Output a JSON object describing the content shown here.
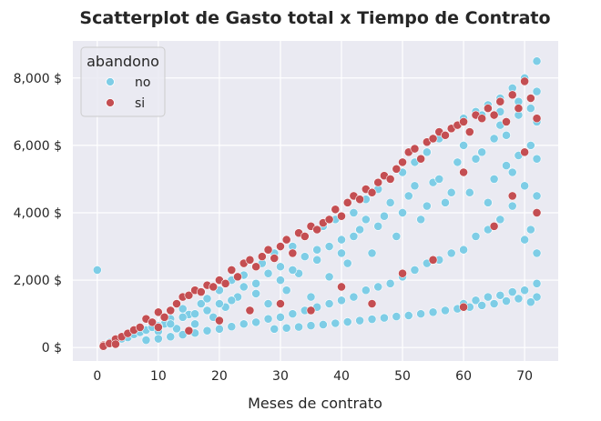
{
  "chart_data": {
    "type": "scatter",
    "title": "Scatterplot de Gasto total x Tiempo de Contrato",
    "xlabel": "Meses de contrato",
    "ylabel": "",
    "xlim": [
      -4,
      75.5
    ],
    "ylim": [
      -400,
      9100
    ],
    "x_ticks": [
      0,
      10,
      20,
      30,
      40,
      50,
      60,
      70
    ],
    "x_tick_labels": [
      "0",
      "10",
      "20",
      "30",
      "40",
      "50",
      "60",
      "70"
    ],
    "y_ticks": [
      0,
      2000,
      4000,
      6000,
      8000
    ],
    "y_tick_labels": [
      "0 $",
      "2,000 $",
      "4,000 $",
      "6,000 $",
      "8,000 $"
    ],
    "grid": true,
    "legend": {
      "title": "abandono",
      "placement": "top-left",
      "entries": [
        {
          "label": "no",
          "color": "#7ecde6"
        },
        {
          "label": "si",
          "color": "#c44e52"
        }
      ]
    },
    "series": [
      {
        "name": "no",
        "color": "#7ecde6",
        "points": [
          [
            0,
            2300
          ],
          [
            1,
            80
          ],
          [
            2,
            150
          ],
          [
            3,
            200
          ],
          [
            4,
            260
          ],
          [
            5,
            300
          ],
          [
            6,
            390
          ],
          [
            7,
            450
          ],
          [
            8,
            520
          ],
          [
            9,
            600
          ],
          [
            10,
            480
          ],
          [
            11,
            700
          ],
          [
            12,
            850
          ],
          [
            13,
            560
          ],
          [
            14,
            1150
          ],
          [
            15,
            980
          ],
          [
            16,
            700
          ],
          [
            17,
            1300
          ],
          [
            18,
            1450
          ],
          [
            19,
            900
          ],
          [
            20,
            1700
          ],
          [
            21,
            1200
          ],
          [
            22,
            2000
          ],
          [
            23,
            1500
          ],
          [
            24,
            2150
          ],
          [
            25,
            1100
          ],
          [
            26,
            1900
          ],
          [
            27,
            2500
          ],
          [
            28,
            1300
          ],
          [
            29,
            2800
          ],
          [
            30,
            2400
          ],
          [
            31,
            1700
          ],
          [
            32,
            3000
          ],
          [
            33,
            2200
          ],
          [
            34,
            3300
          ],
          [
            35,
            1500
          ],
          [
            36,
            2900
          ],
          [
            37,
            3600
          ],
          [
            38,
            2100
          ],
          [
            39,
            3800
          ],
          [
            40,
            3200
          ],
          [
            41,
            2500
          ],
          [
            42,
            4000
          ],
          [
            43,
            3500
          ],
          [
            44,
            4400
          ],
          [
            45,
            2800
          ],
          [
            46,
            4700
          ],
          [
            47,
            3900
          ],
          [
            48,
            5000
          ],
          [
            49,
            3300
          ],
          [
            50,
            5200
          ],
          [
            51,
            4500
          ],
          [
            52,
            5500
          ],
          [
            53,
            3800
          ],
          [
            54,
            5800
          ],
          [
            55,
            4900
          ],
          [
            56,
            6200
          ],
          [
            57,
            4300
          ],
          [
            58,
            6500
          ],
          [
            59,
            5500
          ],
          [
            60,
            6800
          ],
          [
            61,
            4600
          ],
          [
            62,
            7000
          ],
          [
            63,
            5800
          ],
          [
            64,
            7200
          ],
          [
            65,
            5000
          ],
          [
            66,
            7400
          ],
          [
            67,
            6300
          ],
          [
            68,
            7700
          ],
          [
            69,
            5700
          ],
          [
            70,
            8000
          ],
          [
            71,
            7100
          ],
          [
            72,
            8500
          ],
          [
            72,
            6700
          ],
          [
            72,
            5600
          ],
          [
            72,
            4500
          ],
          [
            71,
            3500
          ],
          [
            72,
            2800
          ],
          [
            70,
            3200
          ],
          [
            68,
            4200
          ],
          [
            66,
            3800
          ],
          [
            64,
            3500
          ],
          [
            62,
            3300
          ],
          [
            60,
            2900
          ],
          [
            58,
            2800
          ],
          [
            56,
            2600
          ],
          [
            54,
            2500
          ],
          [
            52,
            2300
          ],
          [
            50,
            2100
          ],
          [
            48,
            1900
          ],
          [
            46,
            1800
          ],
          [
            44,
            1700
          ],
          [
            42,
            1500
          ],
          [
            40,
            1400
          ],
          [
            38,
            1300
          ],
          [
            36,
            1200
          ],
          [
            34,
            1100
          ],
          [
            32,
            1000
          ],
          [
            30,
            900
          ],
          [
            28,
            850
          ],
          [
            26,
            750
          ],
          [
            24,
            700
          ],
          [
            22,
            620
          ],
          [
            20,
            550
          ],
          [
            18,
            500
          ],
          [
            16,
            430
          ],
          [
            14,
            380
          ],
          [
            12,
            320
          ],
          [
            10,
            260
          ],
          [
            8,
            220
          ],
          [
            60,
            1300
          ],
          [
            62,
            1400
          ],
          [
            64,
            1500
          ],
          [
            66,
            1550
          ],
          [
            68,
            1650
          ],
          [
            70,
            1700
          ],
          [
            72,
            1900
          ],
          [
            72,
            1500
          ],
          [
            71,
            1350
          ],
          [
            69,
            1450
          ],
          [
            67,
            1380
          ],
          [
            65,
            1300
          ],
          [
            63,
            1250
          ],
          [
            61,
            1200
          ],
          [
            59,
            1150
          ],
          [
            57,
            1100
          ],
          [
            55,
            1050
          ],
          [
            53,
            1000
          ],
          [
            51,
            950
          ],
          [
            49,
            920
          ],
          [
            47,
            880
          ],
          [
            45,
            840
          ],
          [
            43,
            800
          ],
          [
            41,
            760
          ],
          [
            39,
            720
          ],
          [
            37,
            680
          ],
          [
            35,
            650
          ],
          [
            33,
            610
          ],
          [
            31,
            580
          ],
          [
            29,
            550
          ],
          [
            65,
            6200
          ],
          [
            67,
            5400
          ],
          [
            69,
            6900
          ],
          [
            71,
            6000
          ],
          [
            70,
            4800
          ],
          [
            68,
            5200
          ],
          [
            66,
            6600
          ],
          [
            64,
            4300
          ],
          [
            62,
            5600
          ],
          [
            60,
            5200
          ],
          [
            58,
            4600
          ],
          [
            56,
            5000
          ],
          [
            54,
            4200
          ],
          [
            52,
            4800
          ],
          [
            50,
            4000
          ],
          [
            48,
            4300
          ],
          [
            46,
            3600
          ],
          [
            44,
            3800
          ],
          [
            42,
            3300
          ],
          [
            40,
            2800
          ],
          [
            38,
            3000
          ],
          [
            36,
            2600
          ],
          [
            34,
            2700
          ],
          [
            32,
            2300
          ],
          [
            30,
            2000
          ],
          [
            28,
            2200
          ],
          [
            26,
            1600
          ],
          [
            24,
            1800
          ],
          [
            22,
            1400
          ],
          [
            20,
            1300
          ],
          [
            18,
            1100
          ],
          [
            16,
            1000
          ],
          [
            14,
            900
          ],
          [
            12,
            700
          ],
          [
            10,
            640
          ],
          [
            60,
            6000
          ],
          [
            63,
            6900
          ],
          [
            66,
            7000
          ],
          [
            69,
            7300
          ],
          [
            72,
            7600
          ]
        ]
      },
      {
        "name": "si",
        "color": "#c44e52",
        "points": [
          [
            1,
            70
          ],
          [
            1,
            40
          ],
          [
            2,
            120
          ],
          [
            3,
            250
          ],
          [
            4,
            320
          ],
          [
            5,
            420
          ],
          [
            6,
            520
          ],
          [
            7,
            600
          ],
          [
            8,
            850
          ],
          [
            9,
            750
          ],
          [
            10,
            1050
          ],
          [
            11,
            900
          ],
          [
            12,
            1100
          ],
          [
            13,
            1300
          ],
          [
            14,
            1500
          ],
          [
            15,
            1550
          ],
          [
            16,
            1700
          ],
          [
            17,
            1650
          ],
          [
            18,
            1850
          ],
          [
            19,
            1800
          ],
          [
            20,
            2000
          ],
          [
            21,
            1900
          ],
          [
            22,
            2300
          ],
          [
            23,
            2100
          ],
          [
            24,
            2500
          ],
          [
            25,
            2600
          ],
          [
            26,
            2400
          ],
          [
            27,
            2700
          ],
          [
            28,
            2900
          ],
          [
            29,
            2650
          ],
          [
            30,
            3000
          ],
          [
            31,
            3200
          ],
          [
            32,
            2800
          ],
          [
            33,
            3400
          ],
          [
            34,
            3300
          ],
          [
            35,
            3600
          ],
          [
            36,
            3500
          ],
          [
            37,
            3700
          ],
          [
            38,
            3800
          ],
          [
            39,
            4100
          ],
          [
            40,
            3900
          ],
          [
            41,
            4300
          ],
          [
            42,
            4500
          ],
          [
            43,
            4400
          ],
          [
            44,
            4700
          ],
          [
            45,
            4600
          ],
          [
            46,
            4900
          ],
          [
            47,
            5100
          ],
          [
            48,
            5000
          ],
          [
            49,
            5300
          ],
          [
            50,
            5500
          ],
          [
            51,
            5800
          ],
          [
            52,
            5900
          ],
          [
            53,
            5600
          ],
          [
            54,
            6100
          ],
          [
            55,
            6200
          ],
          [
            56,
            6400
          ],
          [
            57,
            6300
          ],
          [
            58,
            6500
          ],
          [
            59,
            6600
          ],
          [
            60,
            6700
          ],
          [
            61,
            6400
          ],
          [
            62,
            6900
          ],
          [
            63,
            6800
          ],
          [
            64,
            7100
          ],
          [
            65,
            6900
          ],
          [
            66,
            7300
          ],
          [
            67,
            6700
          ],
          [
            68,
            7500
          ],
          [
            69,
            7100
          ],
          [
            70,
            7900
          ],
          [
            71,
            7400
          ],
          [
            72,
            6800
          ],
          [
            72,
            4000
          ],
          [
            70,
            5800
          ],
          [
            68,
            4500
          ],
          [
            65,
            3600
          ],
          [
            60,
            5200
          ],
          [
            55,
            2600
          ],
          [
            50,
            2200
          ],
          [
            45,
            1300
          ],
          [
            40,
            1800
          ],
          [
            35,
            1100
          ],
          [
            30,
            1300
          ],
          [
            25,
            1100
          ],
          [
            20,
            800
          ],
          [
            15,
            500
          ],
          [
            3,
            100
          ],
          [
            10,
            600
          ],
          [
            60,
            1200
          ]
        ]
      }
    ]
  }
}
